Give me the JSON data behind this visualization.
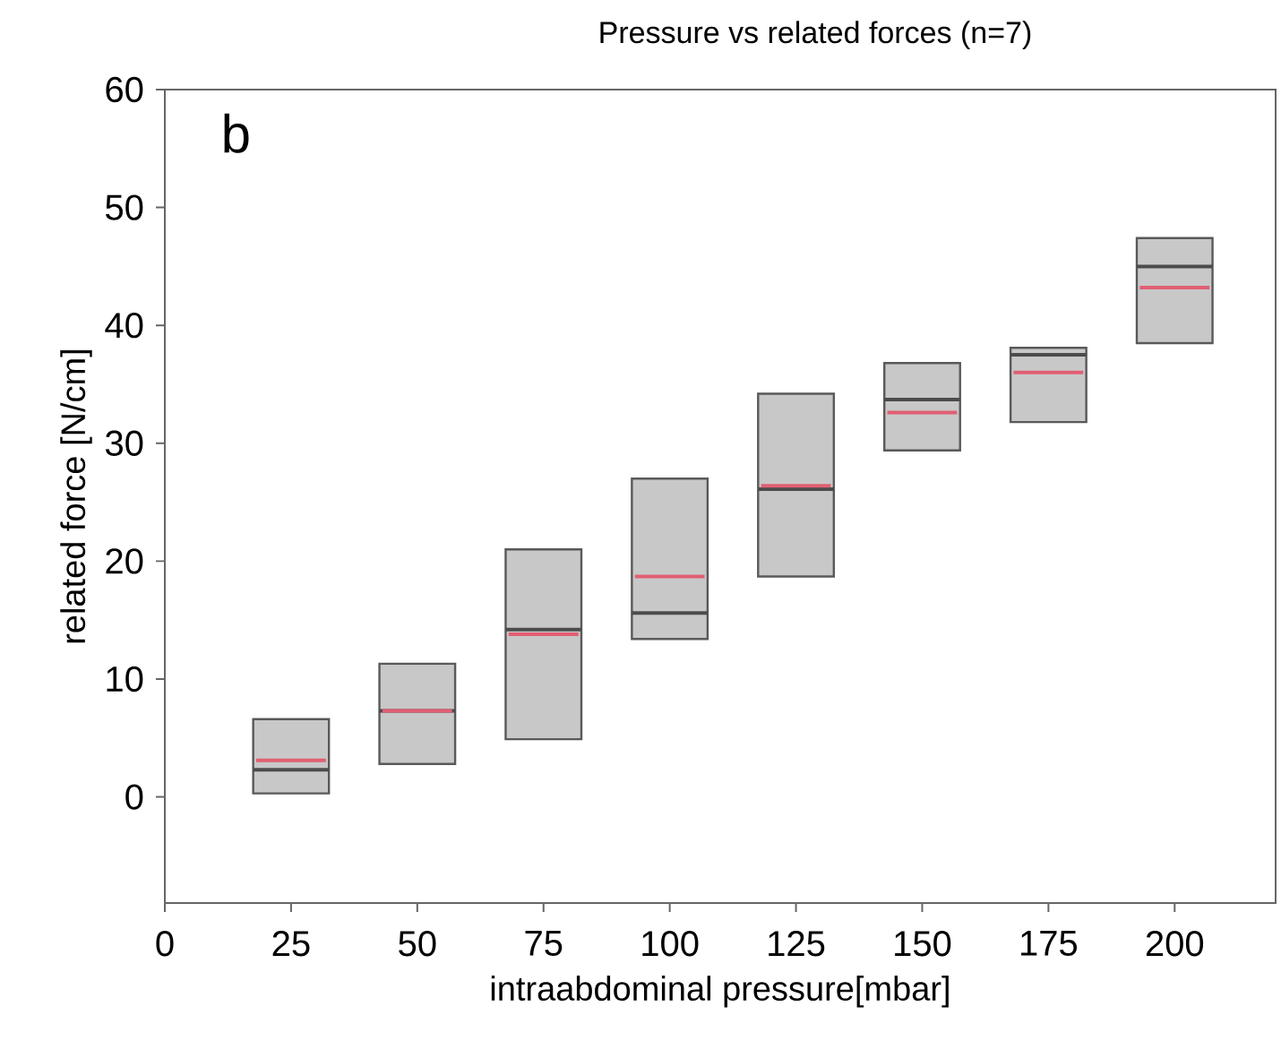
{
  "chart_data": {
    "type": "box",
    "title": "Pressure vs related forces (n=7)",
    "xlabel": "intraabdominal pressure[mbar]",
    "ylabel": "related force [N/cm]",
    "annotations": [
      "b"
    ],
    "x": [
      25,
      50,
      75,
      100,
      125,
      150,
      175,
      200
    ],
    "color": "#c8c8c8",
    "boxes": [
      {
        "low": 0.3,
        "q1": 0.3,
        "median": 2.3,
        "q3": 6.6,
        "high": 6.6,
        "mean": 3.1
      },
      {
        "low": 2.8,
        "q1": 2.8,
        "median": 7.3,
        "q3": 11.3,
        "high": 11.3,
        "mean": 7.3
      },
      {
        "low": 4.9,
        "q1": 4.9,
        "median": 14.2,
        "q3": 21.0,
        "high": 21.0,
        "mean": 13.8
      },
      {
        "low": 13.4,
        "q1": 13.4,
        "median": 15.6,
        "q3": 27.0,
        "high": 27.0,
        "mean": 18.7
      },
      {
        "low": 18.7,
        "q1": 18.7,
        "median": 26.1,
        "q3": 34.2,
        "high": 34.2,
        "mean": 26.4
      },
      {
        "low": 29.4,
        "q1": 29.4,
        "median": 33.7,
        "q3": 36.8,
        "high": 36.8,
        "mean": 32.6
      },
      {
        "low": 31.8,
        "q1": 31.8,
        "median": 37.5,
        "q3": 38.1,
        "high": 38.1,
        "mean": 36.0
      },
      {
        "low": 38.5,
        "q1": 38.5,
        "median": 45.0,
        "q3": 47.4,
        "high": 47.4,
        "mean": 43.2
      }
    ],
    "xlim": [
      0,
      220
    ],
    "xticks": [
      0,
      25,
      50,
      75,
      100,
      125,
      150,
      175,
      200
    ],
    "ylim": [
      -9,
      60
    ],
    "yticks": [
      0,
      10,
      20,
      30,
      40,
      50,
      60
    ]
  }
}
